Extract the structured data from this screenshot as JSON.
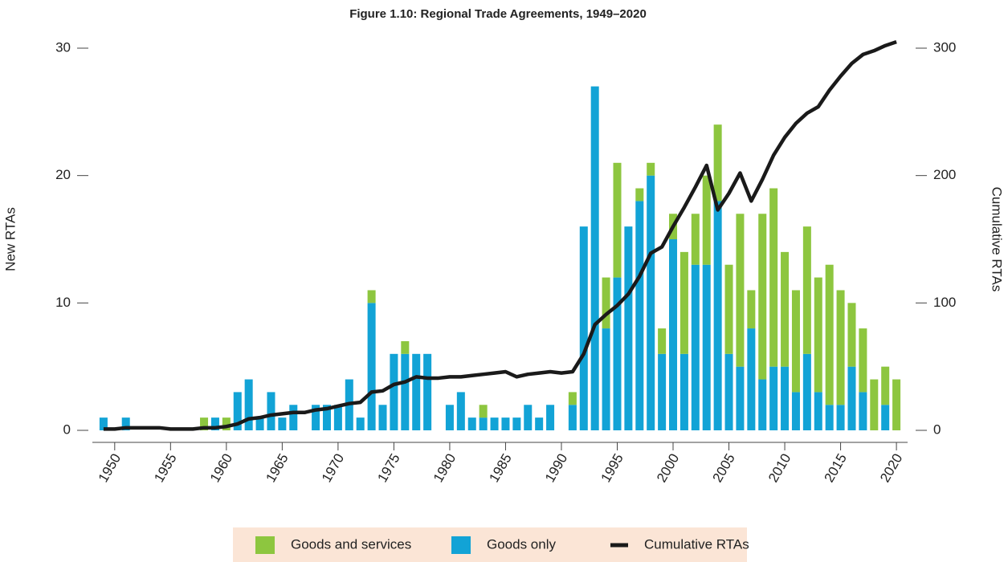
{
  "chart_data": {
    "type": "bar",
    "title": "Figure 1.10: Regional Trade Agreements, 1949–2020",
    "y_label": "New RTAs",
    "y2_label": "Cumulative RTAs",
    "x": [
      1949,
      1950,
      1951,
      1952,
      1953,
      1954,
      1955,
      1956,
      1957,
      1958,
      1959,
      1960,
      1961,
      1962,
      1963,
      1964,
      1965,
      1966,
      1967,
      1968,
      1969,
      1970,
      1971,
      1972,
      1973,
      1974,
      1975,
      1976,
      1977,
      1978,
      1979,
      1980,
      1981,
      1982,
      1983,
      1984,
      1985,
      1986,
      1987,
      1988,
      1989,
      1990,
      1991,
      1992,
      1993,
      1994,
      1995,
      1996,
      1997,
      1998,
      1999,
      2000,
      2001,
      2002,
      2003,
      2004,
      2005,
      2006,
      2007,
      2008,
      2009,
      2010,
      2011,
      2012,
      2013,
      2014,
      2015,
      2016,
      2017,
      2018,
      2019,
      2020
    ],
    "series": [
      {
        "name": "Goods and services",
        "color": "#8dc63f",
        "values": [
          0,
          0,
          0,
          0,
          0,
          0,
          0,
          0,
          0,
          1,
          0,
          1,
          0,
          0,
          0,
          0,
          0,
          0,
          0,
          0,
          0,
          0,
          0,
          0,
          1,
          0,
          0,
          1,
          0,
          0,
          0,
          0,
          0,
          0,
          1,
          0,
          0,
          0,
          0,
          0,
          0,
          0,
          1,
          0,
          0,
          4,
          9,
          0,
          1,
          1,
          2,
          2,
          8,
          4,
          7,
          6,
          7,
          12,
          3,
          13,
          14,
          9,
          8,
          10,
          9,
          11,
          9,
          5,
          5,
          4,
          3,
          4
        ]
      },
      {
        "name": "Goods only",
        "color": "#12a3d6",
        "values": [
          1,
          0,
          1,
          0,
          0,
          0,
          0,
          0,
          0,
          0,
          1,
          0,
          3,
          4,
          1,
          3,
          1,
          2,
          0,
          2,
          2,
          2,
          4,
          1,
          10,
          2,
          6,
          6,
          6,
          6,
          0,
          2,
          3,
          1,
          1,
          1,
          1,
          1,
          2,
          1,
          2,
          0,
          2,
          16,
          27,
          8,
          12,
          16,
          18,
          20,
          6,
          15,
          6,
          13,
          13,
          18,
          6,
          5,
          8,
          4,
          5,
          5,
          3,
          6,
          3,
          2,
          2,
          5,
          3,
          0,
          2,
          0
        ]
      },
      {
        "name": "Cumulative RTAs",
        "color": "#1a1a1a",
        "type": "line",
        "axis": "y2",
        "values": [
          1,
          1,
          2,
          2,
          2,
          2,
          1,
          1,
          1,
          2,
          2,
          3,
          5,
          9,
          10,
          12,
          13,
          14,
          14,
          16,
          17,
          19,
          21,
          22,
          30,
          31,
          36,
          38,
          42,
          41,
          41,
          42,
          42,
          43,
          44,
          45,
          46,
          42,
          44,
          45,
          46,
          45,
          46,
          60,
          83,
          91,
          98,
          107,
          121,
          139,
          144,
          160,
          175,
          191,
          208,
          173,
          186,
          202,
          180,
          197,
          216,
          230,
          241,
          249,
          254,
          267,
          278,
          288,
          295,
          298,
          302,
          305
        ]
      }
    ],
    "xlim": [
      1948,
      2021
    ],
    "xticks": [
      1950,
      1955,
      1960,
      1965,
      1970,
      1975,
      1980,
      1985,
      1990,
      1995,
      2000,
      2005,
      2010,
      2015,
      2020
    ],
    "ylim": [
      0,
      30
    ],
    "yticks": [
      0,
      10,
      20,
      30
    ],
    "y2lim": [
      0,
      300
    ],
    "y2ticks": [
      0,
      100,
      200,
      300
    ]
  }
}
